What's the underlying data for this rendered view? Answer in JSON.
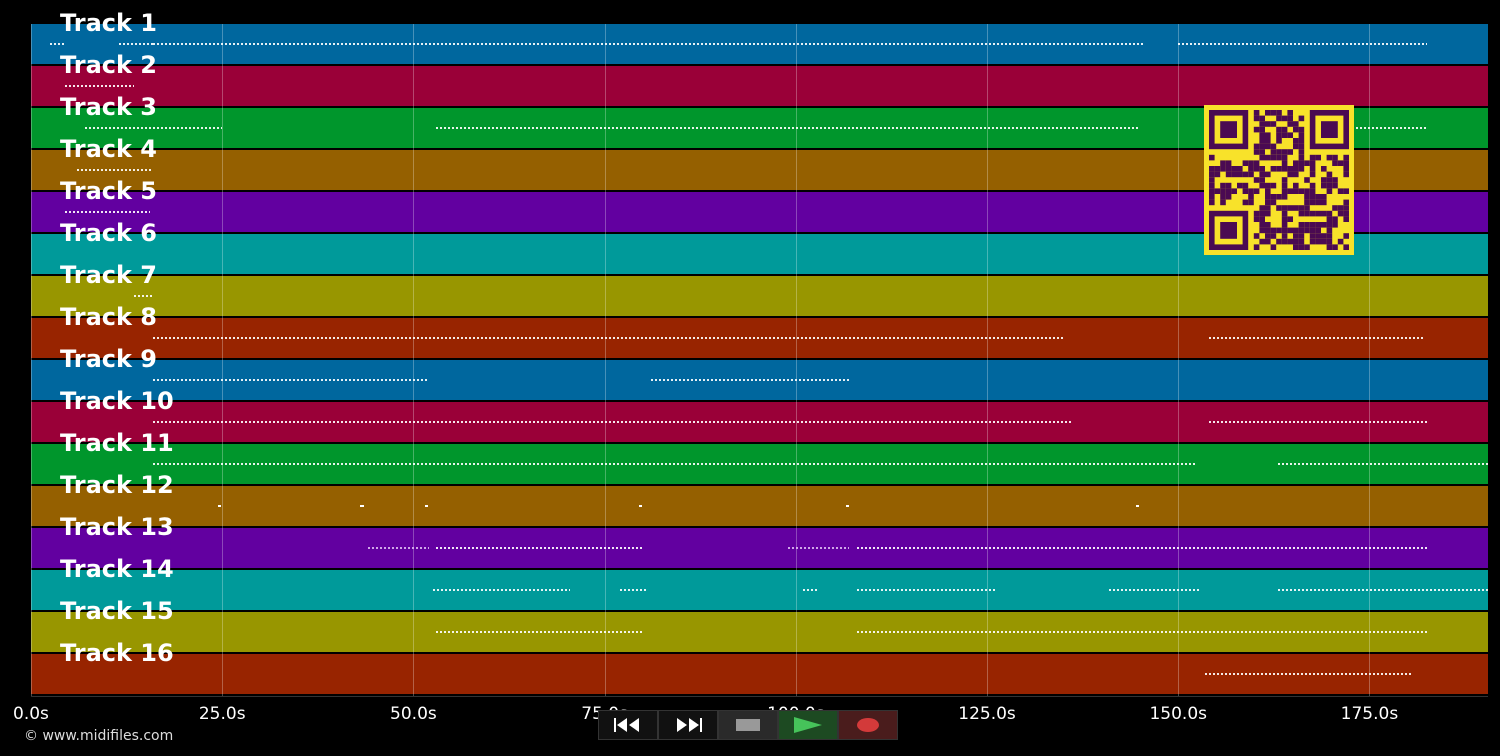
{
  "tracks": [
    {
      "label": "Track 1",
      "color": "#00679e"
    },
    {
      "label": "Track 2",
      "color": "#9a0038"
    },
    {
      "label": "Track 3",
      "color": "#00962c"
    },
    {
      "label": "Track 4",
      "color": "#956000"
    },
    {
      "label": "Track 5",
      "color": "#6200a0"
    },
    {
      "label": "Track 6",
      "color": "#009a9a"
    },
    {
      "label": "Track 7",
      "color": "#989600"
    },
    {
      "label": "Track 8",
      "color": "#982400"
    },
    {
      "label": "Track 9",
      "color": "#00679e"
    },
    {
      "label": "Track 10",
      "color": "#9a0038"
    },
    {
      "label": "Track 11",
      "color": "#00962c"
    },
    {
      "label": "Track 12",
      "color": "#956000"
    },
    {
      "label": "Track 13",
      "color": "#6200a0"
    },
    {
      "label": "Track 14",
      "color": "#009a9a"
    },
    {
      "label": "Track 15",
      "color": "#989600"
    },
    {
      "label": "Track 16",
      "color": "#982400"
    }
  ],
  "timeline": {
    "max_seconds": 190.5,
    "ticks": [
      {
        "value": 0,
        "label": "0.0s"
      },
      {
        "value": 25,
        "label": "25.0s"
      },
      {
        "value": 50,
        "label": "50.0s"
      },
      {
        "value": 75,
        "label": "75.0s"
      },
      {
        "value": 100,
        "label": "100.0s"
      },
      {
        "value": 125,
        "label": "125.0s"
      },
      {
        "value": 150,
        "label": "150.0s"
      },
      {
        "value": 175,
        "label": "175.0s"
      }
    ]
  },
  "note_segments": [
    {
      "track": 0,
      "start": 2.5,
      "end": 4.5,
      "color": "#ffffff"
    },
    {
      "track": 0,
      "start": 11.5,
      "end": 16,
      "color": "#ffffff"
    },
    {
      "track": 0,
      "start": 16,
      "end": 145.5,
      "color": "#ffffff"
    },
    {
      "track": 0,
      "start": 150,
      "end": 182.5,
      "color": "#ffffff"
    },
    {
      "track": 1,
      "start": 4.5,
      "end": 13.5,
      "color": "#ffffff"
    },
    {
      "track": 2,
      "start": 7,
      "end": 25,
      "color": "#ffffff"
    },
    {
      "track": 2,
      "start": 53,
      "end": 145,
      "color": "#ffffff"
    },
    {
      "track": 2,
      "start": 156,
      "end": 182.5,
      "color": "#ffffff"
    },
    {
      "track": 3,
      "start": 6,
      "end": 16,
      "color": "#ffffff"
    },
    {
      "track": 4,
      "start": 4.5,
      "end": 15.5,
      "color": "#ffffff"
    },
    {
      "track": 6,
      "start": 13.5,
      "end": 16,
      "color": "#ffffff"
    },
    {
      "track": 7,
      "start": 16,
      "end": 108,
      "color": "#ffffff"
    },
    {
      "track": 7,
      "start": 108,
      "end": 135,
      "color": "#ffffff"
    },
    {
      "track": 7,
      "start": 154,
      "end": 182,
      "color": "#ffffff"
    },
    {
      "track": 8,
      "start": 16,
      "end": 52,
      "color": "#ffffff"
    },
    {
      "track": 8,
      "start": 81,
      "end": 107,
      "color": "#ffffff"
    },
    {
      "track": 9,
      "start": 16,
      "end": 136,
      "color": "#ffffff"
    },
    {
      "track": 9,
      "start": 154,
      "end": 182.5,
      "color": "#ffffff"
    },
    {
      "track": 10,
      "start": 16,
      "end": 152.5,
      "color": "#ffffff"
    },
    {
      "track": 10,
      "start": 163,
      "end": 190.5,
      "color": "#ffffff"
    },
    {
      "track": 11,
      "start": 24.5,
      "end": 24.8,
      "color": "#ffffff"
    },
    {
      "track": 11,
      "start": 43,
      "end": 43.5,
      "color": "#ffffff"
    },
    {
      "track": 11,
      "start": 51.5,
      "end": 51.9,
      "color": "#ffffff"
    },
    {
      "track": 11,
      "start": 79.5,
      "end": 79.9,
      "color": "#ffffff"
    },
    {
      "track": 11,
      "start": 106.5,
      "end": 106.9,
      "color": "#ffffff"
    },
    {
      "track": 11,
      "start": 144.5,
      "end": 144.9,
      "color": "#ffffff"
    },
    {
      "track": 12,
      "start": 44,
      "end": 52,
      "color": "#dbb8f0"
    },
    {
      "track": 12,
      "start": 53,
      "end": 80,
      "color": "#ffffff"
    },
    {
      "track": 12,
      "start": 99,
      "end": 107,
      "color": "#dbb8f0"
    },
    {
      "track": 12,
      "start": 108,
      "end": 182.5,
      "color": "#ffffff"
    },
    {
      "track": 13,
      "start": 52.5,
      "end": 70.5,
      "color": "#ffffff"
    },
    {
      "track": 13,
      "start": 77,
      "end": 80.5,
      "color": "#ffffff"
    },
    {
      "track": 13,
      "start": 101,
      "end": 103,
      "color": "#ffffff"
    },
    {
      "track": 13,
      "start": 108,
      "end": 126,
      "color": "#ffffff"
    },
    {
      "track": 13,
      "start": 141,
      "end": 153,
      "color": "#ffffff"
    },
    {
      "track": 13,
      "start": 163,
      "end": 190.5,
      "color": "#ffffff"
    },
    {
      "track": 14,
      "start": 53,
      "end": 80,
      "color": "#ffffff"
    },
    {
      "track": 14,
      "start": 108,
      "end": 182.5,
      "color": "#ffffff"
    },
    {
      "track": 15,
      "start": 153.5,
      "end": 180.5,
      "color": "#ffffff"
    }
  ],
  "copyright": "© www.midifiles.com",
  "transport": [
    {
      "name": "rewind-button",
      "icon": "rewind-icon"
    },
    {
      "name": "fast-forward-button",
      "icon": "fast-forward-icon"
    },
    {
      "name": "stop-button",
      "icon": "stop-icon"
    },
    {
      "name": "play-button",
      "icon": "play-icon"
    },
    {
      "name": "record-button",
      "icon": "record-icon"
    }
  ],
  "colors": {
    "background": "#000000",
    "qr_background": "#f8e22a",
    "qr_foreground": "#4a0a52",
    "play_green": "#46c35a",
    "record_red": "#d33a3a"
  }
}
